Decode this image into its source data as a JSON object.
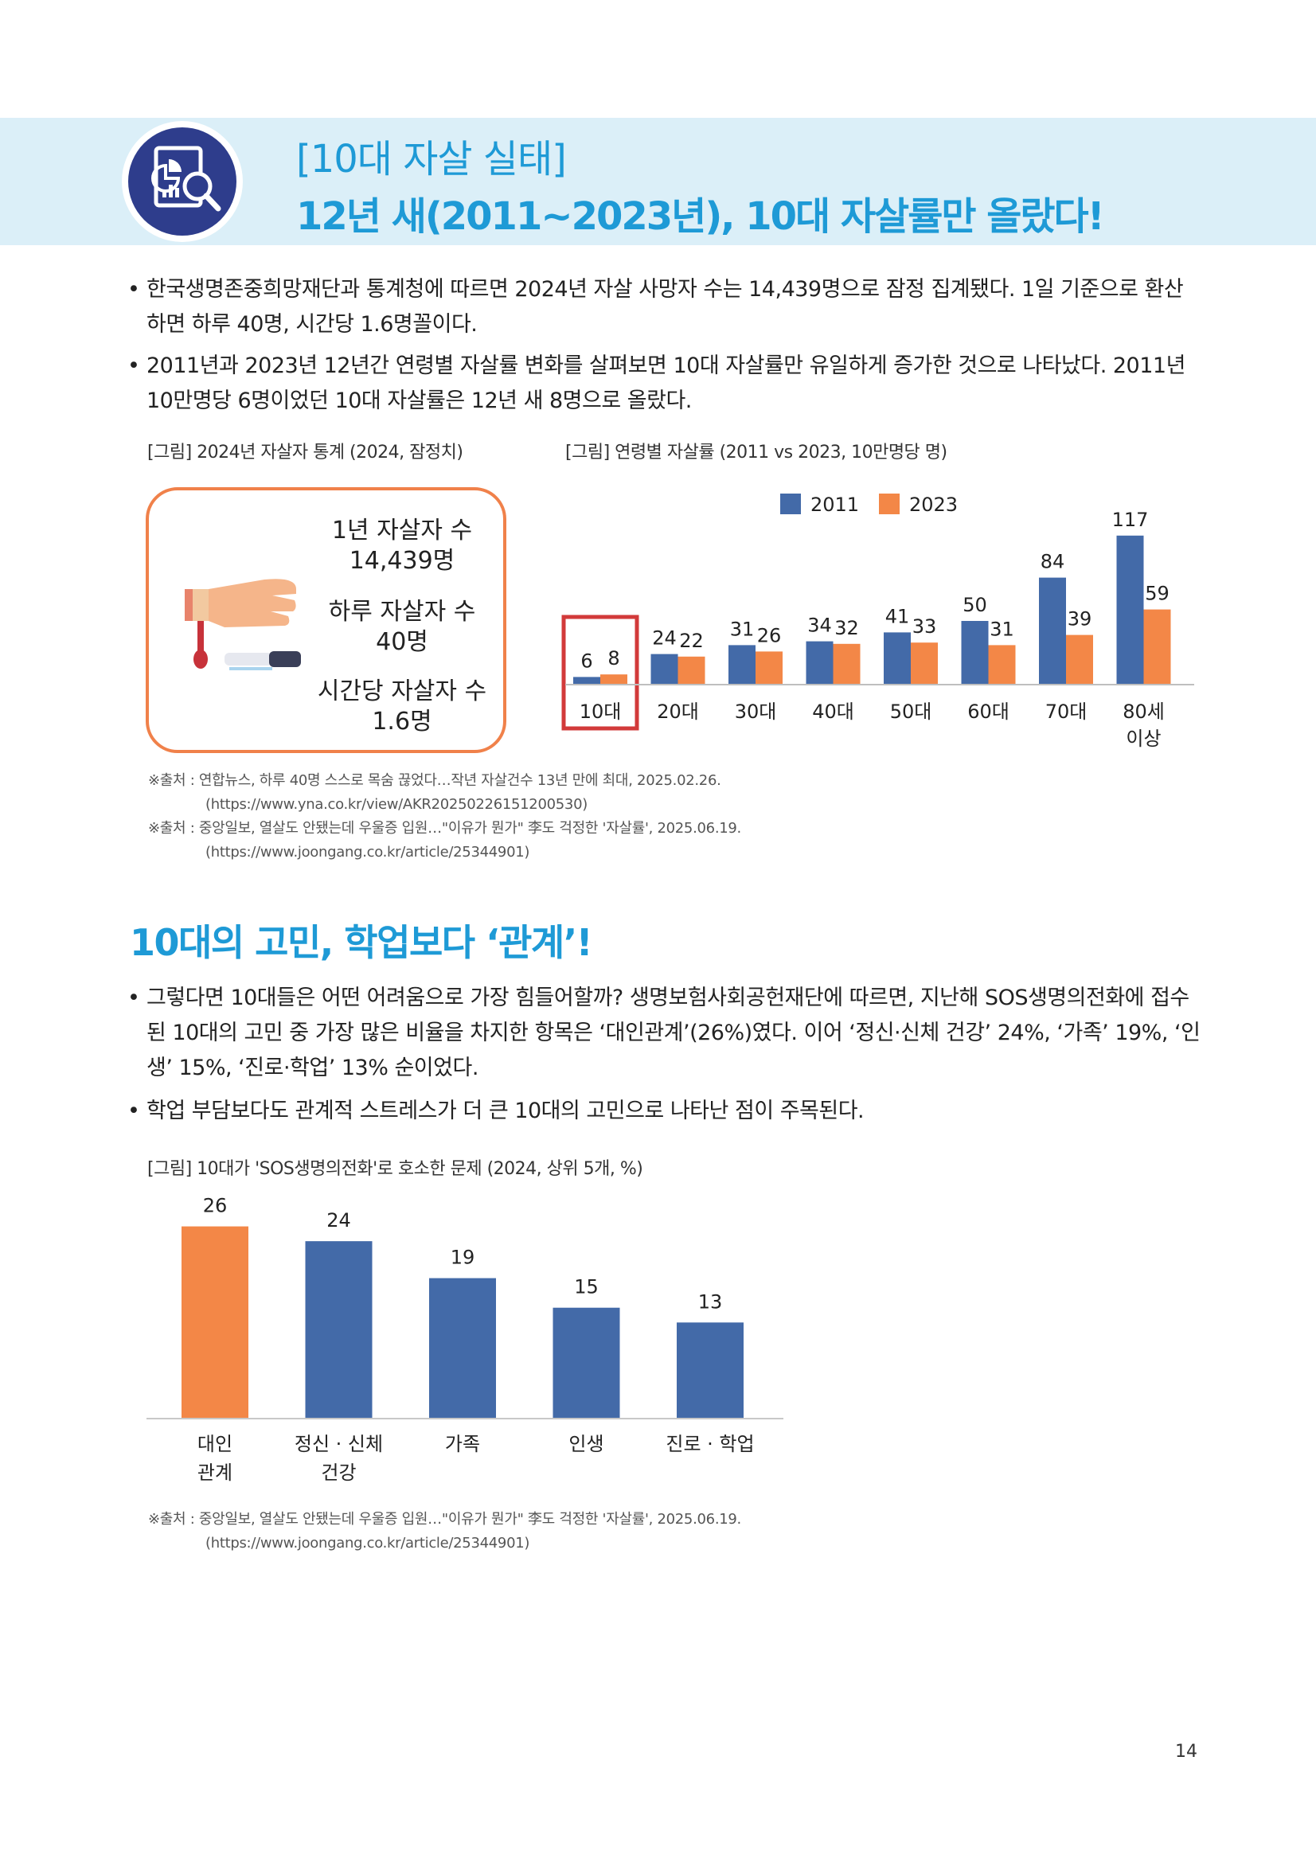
{
  "banner": {
    "subtitle": "[10대 자살 실태]",
    "title": "12년 새(2011~2023년), 10대 자살률만 올랐다!",
    "colors": {
      "accent": "#1e9ad6",
      "band": "#dbeff8",
      "badge": "#2e3d8c"
    },
    "icon": "chart-report-magnifier-icon"
  },
  "section1": {
    "bullets": [
      "한국생명존중희망재단과 통계청에 따르면 2024년 자살 사망자 수는 14,439명으로 잠정 집계됐다. 1일 기준으로 환산하면 하루 40명, 시간당 1.6명꼴이다.",
      "2011년과 2023년 12년간 연령별 자살률 변화를 살펴보면 10대 자살률만 유일하게 증가한 것으로 나타났다. 2011년 10만명당 6명이었던 10대 자살률은 12년 새 8명으로 올랐다."
    ],
    "figure1_caption": "[그림] 2024년 자살자 통계 (2024, 잠정치)",
    "figure2_caption": "[그림] 연령별 자살률 (2011 vs 2023, 10만명당 명)",
    "stats": [
      {
        "label": "1년 자살자 수",
        "value": "14,439명"
      },
      {
        "label": "하루 자살자 수",
        "value": "40명"
      },
      {
        "label": "시간당 자살자 수",
        "value": "1.6명"
      }
    ],
    "stat_icon": "bleeding-wrist-icon",
    "sources": [
      {
        "text": "※출처 : 연합뉴스, 하루 40명 스스로 목숨 끊었다…작년 자살건수 13년 만에 최대, 2025.02.26.",
        "url": "(https://www.yna.co.kr/view/AKR20250226151200530)"
      },
      {
        "text": "※출처 : 중앙일보, 열살도 안됐는데 우울증 입원…\"이유가 뭔가\" 李도 걱정한 '자살률', 2025.06.19.",
        "url": "(https://www.joongang.co.kr/article/25344901)"
      }
    ]
  },
  "section2": {
    "title": "10대의 고민, 학업보다 ‘관계’!",
    "bullets": [
      "그렇다면 10대들은 어떤 어려움으로 가장 힘들어할까? 생명보험사회공헌재단에 따르면, 지난해 SOS생명의전화에 접수된 10대의 고민 중 가장 많은 비율을 차지한 항목은 ‘대인관계’(26%)였다. 이어 ‘정신·신체 건강’ 24%, ‘가족’ 19%, ‘인생’ 15%, ‘진로·학업’ 13% 순이었다.",
      "학업 부담보다도 관계적 스트레스가 더 큰 10대의 고민으로 나타난 점이 주목된다."
    ],
    "figure_caption": "[그림] 10대가 'SOS생명의전화'로 호소한 문제 (2024, 상위 5개, %)",
    "source": {
      "text": "※출처 : 중앙일보, 열살도 안됐는데 우울증 입원…\"이유가 뭔가\" 李도 걱정한 '자살률', 2025.06.19.",
      "url": "(https://www.joongang.co.kr/article/25344901)"
    }
  },
  "page_number": "14",
  "chart_data": [
    {
      "type": "bar",
      "categories": [
        "10대",
        "20대",
        "30대",
        "40대",
        "50대",
        "60대",
        "70대",
        "80세 이상"
      ],
      "series": [
        {
          "name": "2011",
          "values": [
            6,
            24,
            31,
            34,
            41,
            50,
            84,
            117
          ],
          "color": "#436aa8"
        },
        {
          "name": "2023",
          "values": [
            8,
            22,
            26,
            32,
            33,
            31,
            39,
            59
          ],
          "color": "#f38747"
        }
      ],
      "legend": "top-center",
      "highlight_category": "10대",
      "highlight_color": "#d23a3a",
      "ylim": [
        0,
        125
      ],
      "grid": false
    },
    {
      "type": "bar",
      "categories": [
        "대인 관계",
        "정신 · 신체 건강",
        "가족",
        "인생",
        "진로 · 학업"
      ],
      "values": [
        26,
        24,
        19,
        15,
        13
      ],
      "colors": [
        "#f38747",
        "#436aa8",
        "#436aa8",
        "#436aa8",
        "#436aa8"
      ],
      "ylim": [
        0,
        28
      ],
      "grid": false
    }
  ]
}
